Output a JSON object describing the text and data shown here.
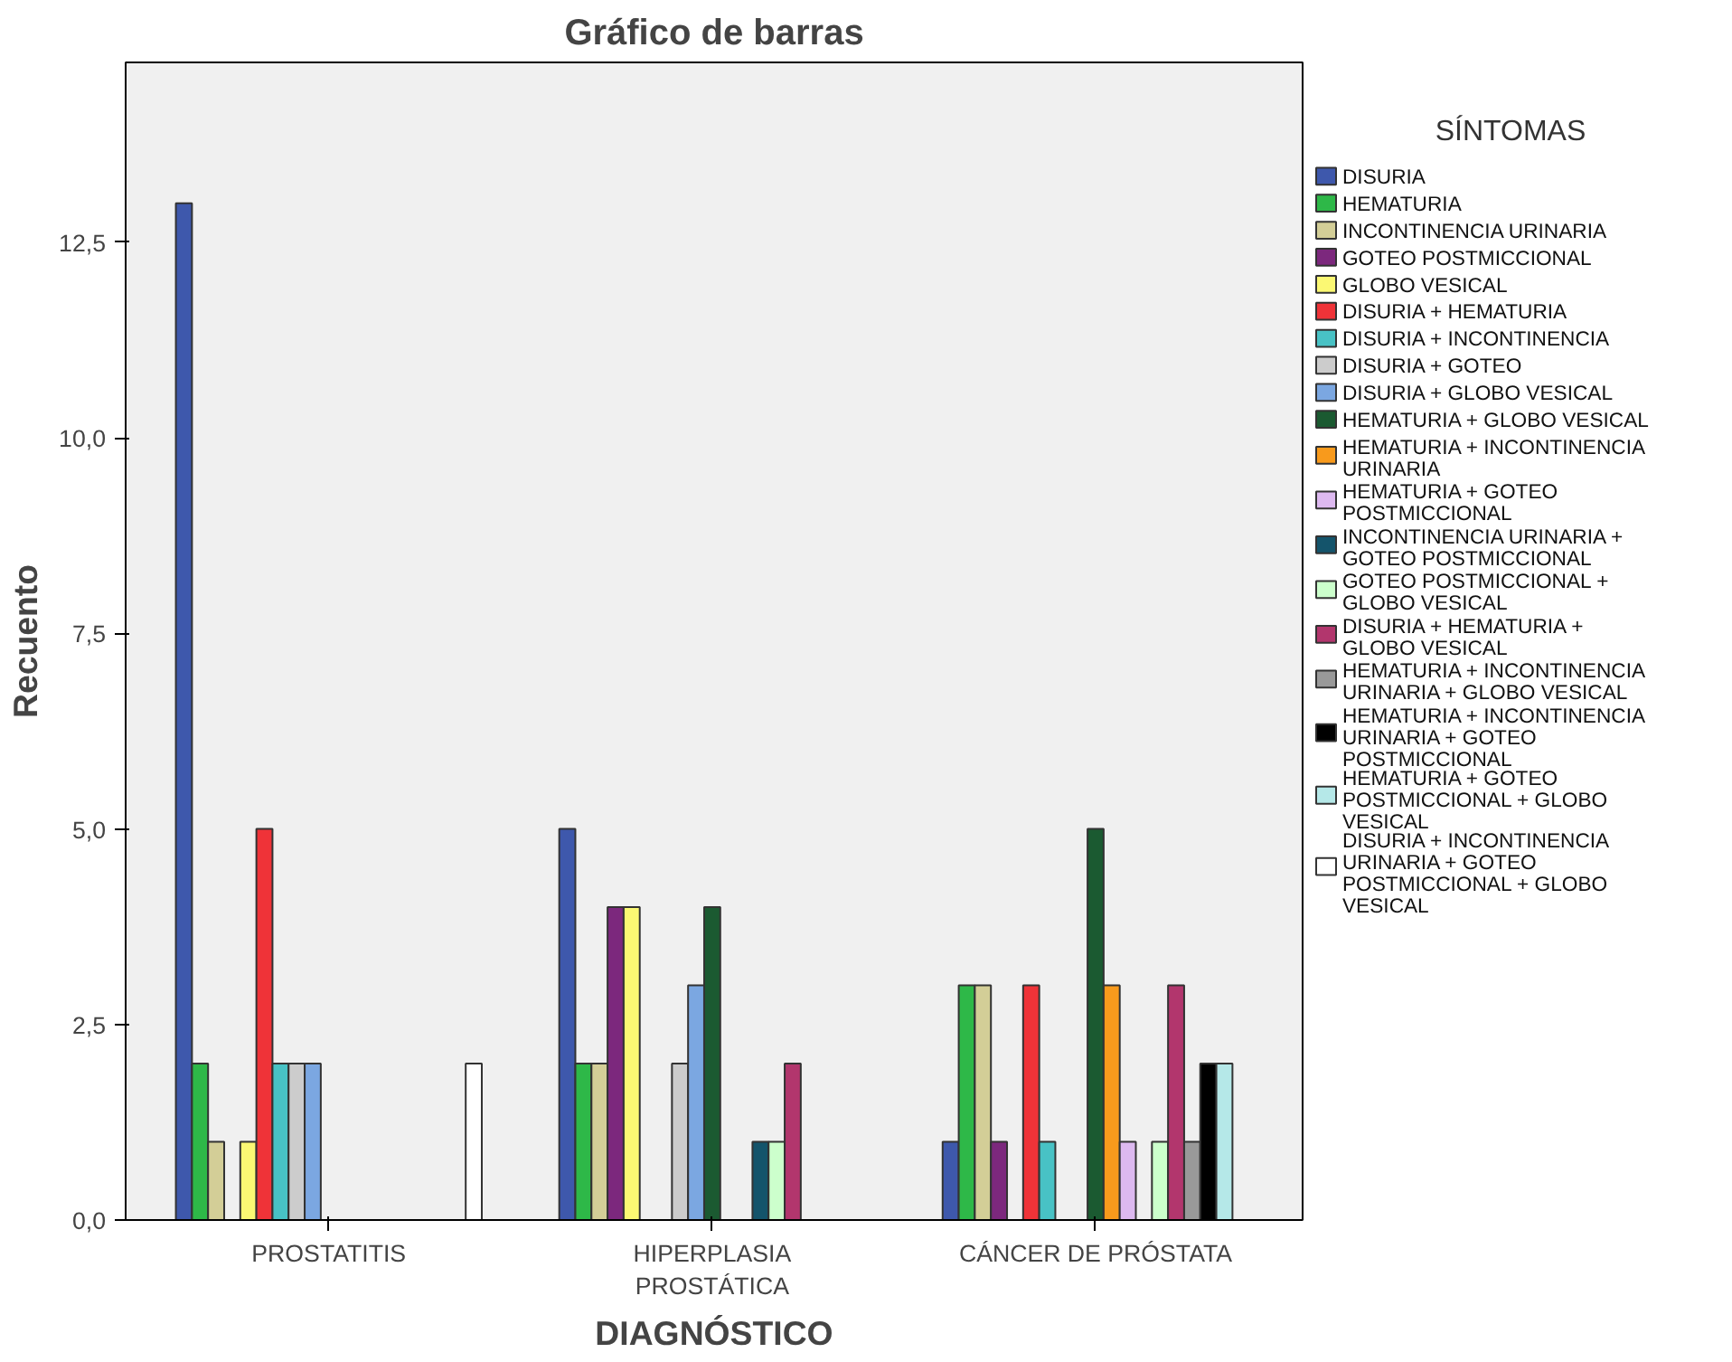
{
  "chart_data": {
    "type": "bar",
    "title": "Gráfico de barras",
    "xlabel": "DIAGNÓSTICO",
    "ylabel": "Recuento",
    "legend_title": "SÍNTOMAS",
    "legend": "right",
    "grid": false,
    "categories": [
      "PROSTATITIS",
      "HIPERPLASIA PROSTÁTICA",
      "CÁNCER DE PRÓSTATA"
    ],
    "ylim": [
      0,
      14.8
    ],
    "yticks": [
      {
        "value": 0,
        "label": "0,0"
      },
      {
        "value": 2.5,
        "label": "2,5"
      },
      {
        "value": 5,
        "label": "5,0"
      },
      {
        "value": 7.5,
        "label": "7,5"
      },
      {
        "value": 10,
        "label": "10,0"
      },
      {
        "value": 12.5,
        "label": "12,5"
      }
    ],
    "series": [
      {
        "name": "DISURIA",
        "color": "#3e58ac",
        "values": [
          13,
          5,
          1
        ]
      },
      {
        "name": "HEMATURIA",
        "color": "#2eb848",
        "values": [
          2,
          2,
          3
        ]
      },
      {
        "name": "INCONTINENCIA URINARIA",
        "color": "#d3ce97",
        "values": [
          1,
          2,
          3
        ]
      },
      {
        "name": "GOTEO POSTMICCIONAL",
        "color": "#7c287d",
        "values": [
          null,
          4,
          1
        ]
      },
      {
        "name": "GLOBO VESICAL",
        "color": "#fbf873",
        "values": [
          1,
          4,
          null
        ]
      },
      {
        "name": "DISURIA + HEMATURIA",
        "color": "#ef3338",
        "values": [
          5,
          null,
          3
        ]
      },
      {
        "name": "DISURIA + INCONTINENCIA",
        "color": "#48c2c5",
        "values": [
          2,
          null,
          1
        ]
      },
      {
        "name": "DISURIA + GOTEO",
        "color": "#cccccc",
        "values": [
          2,
          2,
          null
        ]
      },
      {
        "name": "DISURIA + GLOBO VESICAL",
        "color": "#7ba7e1",
        "values": [
          2,
          3,
          null
        ]
      },
      {
        "name": "HEMATURIA + GLOBO VESICAL",
        "color": "#1b5a31",
        "values": [
          null,
          4,
          5
        ]
      },
      {
        "name": "HEMATURIA + INCONTINENCIA URINARIA",
        "color": "#f89a1c",
        "values": [
          null,
          null,
          3
        ]
      },
      {
        "name": "HEMATURIA + GOTEO POSTMICCIONAL",
        "color": "#ddb9f0",
        "values": [
          null,
          null,
          1
        ]
      },
      {
        "name": "INCONTINENCIA URINARIA + GOTEO POSTMICCIONAL",
        "color": "#14546b",
        "values": [
          null,
          1,
          null
        ]
      },
      {
        "name": "GOTEO POSTMICCIONAL + GLOBO VESICAL",
        "color": "#ccffcc",
        "values": [
          null,
          1,
          1
        ]
      },
      {
        "name": "DISURIA + HEMATURIA + GLOBO VESICAL",
        "color": "#b2366d",
        "values": [
          null,
          2,
          3
        ]
      },
      {
        "name": "HEMATURIA + INCONTINENCIA URINARIA + GLOBO VESICAL",
        "color": "#999999",
        "values": [
          null,
          null,
          1
        ]
      },
      {
        "name": "HEMATURIA + INCONTINENCIA URINARIA + GOTEO POSTMICCIONAL",
        "color": "#000000",
        "values": [
          null,
          null,
          2
        ]
      },
      {
        "name": "HEMATURIA + GOTEO POSTMICCIONAL + GLOBO VESICAL",
        "color": "#b5e8e8",
        "values": [
          null,
          null,
          2
        ]
      },
      {
        "name": "DISURIA + INCONTINENCIA URINARIA + GOTEO POSTMICCIONAL + GLOBO VESICAL",
        "color": "#ffffff",
        "values": [
          2,
          null,
          null
        ]
      }
    ]
  }
}
